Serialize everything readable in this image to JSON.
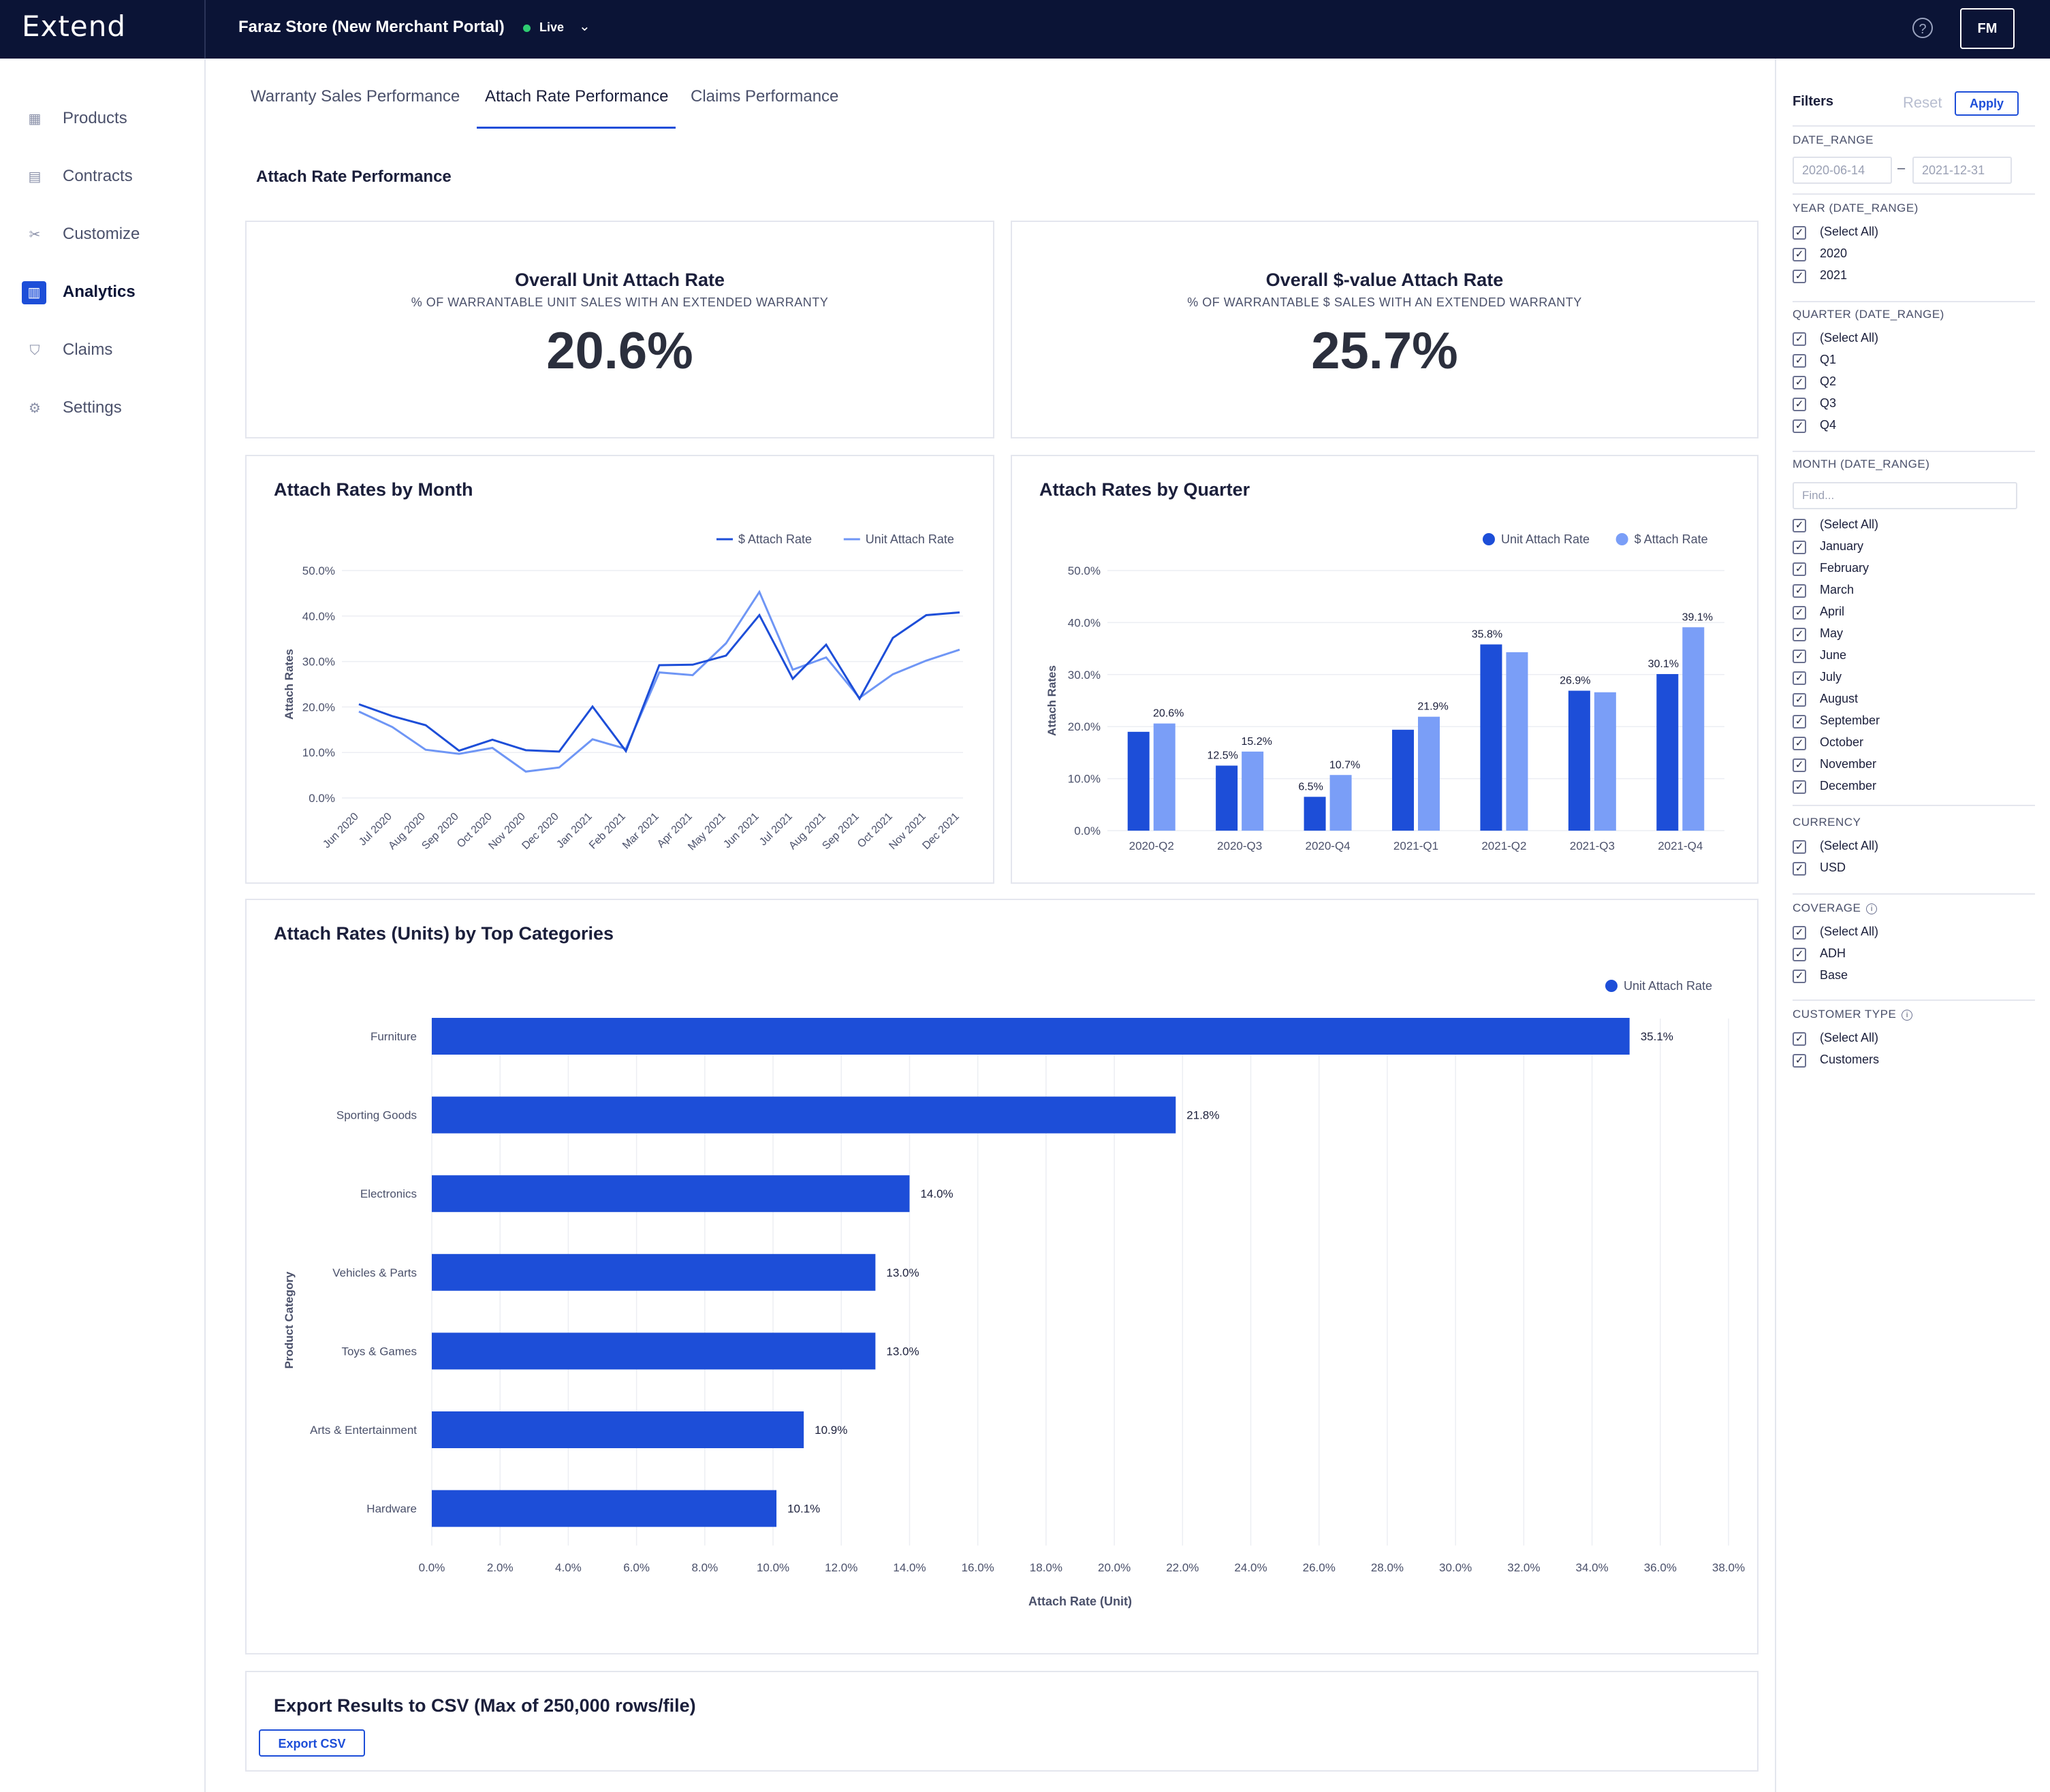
{
  "app": {
    "logo": "Extend",
    "store": "Faraz Store (New Merchant Portal)",
    "status": "Live",
    "help": "?",
    "user_initials": "FM"
  },
  "sidebar": {
    "items": [
      {
        "label": "Products",
        "icon": "grid-icon"
      },
      {
        "label": "Contracts",
        "icon": "document-icon"
      },
      {
        "label": "Customize",
        "icon": "tools-icon"
      },
      {
        "label": "Analytics",
        "icon": "chart-icon"
      },
      {
        "label": "Claims",
        "icon": "shield-icon"
      },
      {
        "label": "Settings",
        "icon": "gear-icon"
      }
    ],
    "active": "Analytics"
  },
  "tabs": [
    "Warranty Sales Performance",
    "Attach Rate Performance",
    "Claims Performance"
  ],
  "active_tab": "Attach Rate Performance",
  "section_title": "Attach Rate Performance",
  "kpis": [
    {
      "title": "Overall Unit Attach Rate",
      "subtitle": "% OF WARRANTABLE UNIT SALES WITH AN EXTENDED WARRANTY",
      "value": "20.6%"
    },
    {
      "title": "Overall $-value Attach Rate",
      "subtitle": "% OF WARRANTABLE $ SALES WITH AN EXTENDED WARRANTY",
      "value": "25.7%"
    }
  ],
  "chart_data": [
    {
      "type": "line",
      "title": "Attach Rates by Month",
      "ylabel": "Attach Rates",
      "xlabel": "",
      "ylim": [
        0,
        50
      ],
      "yticks": [
        "0.0%",
        "10.0%",
        "20.0%",
        "30.0%",
        "40.0%",
        "50.0%"
      ],
      "legend": "top-right",
      "categories": [
        "Jun 2020",
        "Jul 2020",
        "Aug 2020",
        "Sep 2020",
        "Oct 2020",
        "Nov 2020",
        "Dec 2020",
        "Jan 2021",
        "Feb 2021",
        "Mar 2021",
        "Apr 2021",
        "May 2021",
        "Jun 2021",
        "Jul 2021",
        "Aug 2021",
        "Sep 2021",
        "Oct 2021",
        "Nov 2021",
        "Dec 2021"
      ],
      "series": [
        {
          "name": "$ Attach Rate",
          "color": "#1d4ed8",
          "values": [
            20.6,
            18,
            16,
            10.4,
            12.8,
            10.5,
            10.2,
            20.1,
            10.3,
            29.2,
            29.3,
            31.3,
            40.2,
            26.2,
            33.7,
            21.8,
            35.2,
            40.2,
            40.8
          ]
        },
        {
          "name": "Unit Attach Rate",
          "color": "#6f96f5",
          "values": [
            19,
            15.6,
            10.6,
            9.7,
            11,
            5.8,
            6.7,
            12.9,
            10.8,
            27.6,
            27,
            34,
            45.3,
            28.2,
            30.9,
            22,
            27.2,
            30.2,
            32.6
          ]
        }
      ]
    },
    {
      "type": "bar",
      "title": "Attach Rates by Quarter",
      "ylabel": "Attach Rates",
      "xlabel": "",
      "ylim": [
        0,
        50
      ],
      "yticks": [
        "0.0%",
        "10.0%",
        "20.0%",
        "30.0%",
        "40.0%",
        "50.0%"
      ],
      "legend": "top-right",
      "categories": [
        "2020-Q2",
        "2020-Q3",
        "2020-Q4",
        "2021-Q1",
        "2021-Q2",
        "2021-Q3",
        "2021-Q4"
      ],
      "series": [
        {
          "name": "Unit Attach Rate",
          "color": "#1d4ed8",
          "values": [
            19.0,
            12.5,
            6.5,
            19.4,
            35.8,
            26.9,
            30.1
          ],
          "labels": [
            "",
            "12.5%",
            "6.5%",
            "",
            "35.8%",
            "26.9%",
            "30.1%"
          ]
        },
        {
          "name": "$ Attach Rate",
          "color": "#7a9ef7",
          "values": [
            20.6,
            15.2,
            10.7,
            21.9,
            34.3,
            26.6,
            39.1
          ],
          "labels": [
            "20.6%",
            "15.2%",
            "10.7%",
            "21.9%",
            "",
            "",
            "39.1%"
          ]
        }
      ]
    },
    {
      "type": "bar",
      "orientation": "horizontal",
      "title": "Attach Rates (Units) by Top Categories",
      "xlabel": "Attach Rate (Unit)",
      "ylabel": "Product Category",
      "xlim": [
        0,
        38
      ],
      "xticks": [
        "0.0%",
        "2.0%",
        "4.0%",
        "6.0%",
        "8.0%",
        "10.0%",
        "12.0%",
        "14.0%",
        "16.0%",
        "18.0%",
        "20.0%",
        "22.0%",
        "24.0%",
        "26.0%",
        "28.0%",
        "30.0%",
        "32.0%",
        "34.0%",
        "36.0%",
        "38.0%"
      ],
      "legend": "top-right",
      "categories": [
        "Furniture",
        "Sporting Goods",
        "Electronics",
        "Vehicles & Parts",
        "Toys & Games",
        "Arts & Entertainment",
        "Hardware"
      ],
      "series": [
        {
          "name": "Unit Attach Rate",
          "color": "#1d4ed8",
          "values": [
            35.1,
            21.8,
            14.0,
            13.0,
            13.0,
            10.9,
            10.1
          ],
          "labels": [
            "35.1%",
            "21.8%",
            "14.0%",
            "13.0%",
            "13.0%",
            "10.9%",
            "10.1%"
          ]
        }
      ]
    }
  ],
  "export": {
    "title": "Export Results to CSV (Max of 250,000 rows/file)",
    "button": "Export CSV"
  },
  "filters": {
    "title": "Filters",
    "reset": "Reset",
    "apply": "Apply",
    "date_range": {
      "label": "DATE_RANGE",
      "start": "2020-06-14",
      "end": "2021-12-31",
      "sep": "–"
    },
    "year": {
      "label": "YEAR (DATE_RANGE)",
      "options": [
        "(Select All)",
        "2020",
        "2021"
      ]
    },
    "quarter": {
      "label": "QUARTER (DATE_RANGE)",
      "options": [
        "(Select All)",
        "Q1",
        "Q2",
        "Q3",
        "Q4"
      ]
    },
    "month": {
      "label": "MONTH (DATE_RANGE)",
      "find_placeholder": "Find...",
      "options": [
        "(Select All)",
        "January",
        "February",
        "March",
        "April",
        "May",
        "June",
        "July",
        "August",
        "September",
        "October",
        "November",
        "December"
      ]
    },
    "currency": {
      "label": "CURRENCY",
      "options": [
        "(Select All)",
        "USD"
      ]
    },
    "coverage": {
      "label": "COVERAGE",
      "options": [
        "(Select All)",
        "ADH",
        "Base"
      ]
    },
    "customer_type": {
      "label": "CUSTOMER TYPE",
      "options": [
        "(Select All)",
        "Customers"
      ]
    }
  }
}
